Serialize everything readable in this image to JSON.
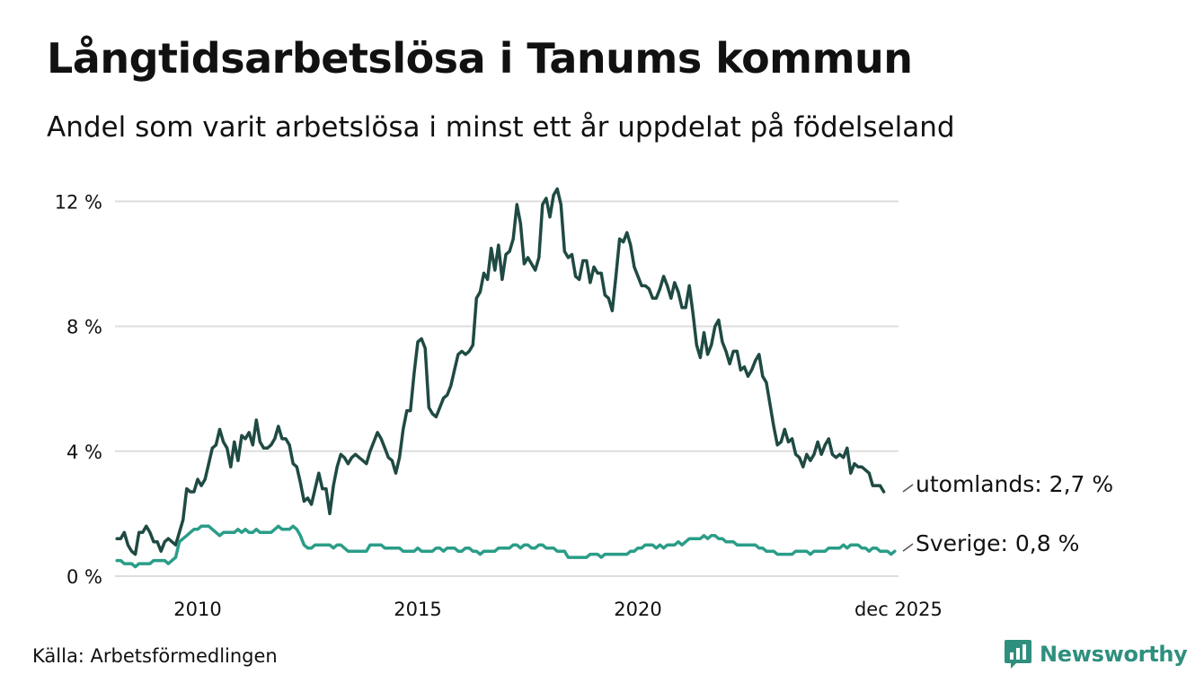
{
  "header": {
    "title": "Långtidsarbetslösa i Tanums kommun",
    "subtitle": "Andel som varit arbetslösa i minst ett år uppdelat på födelseland"
  },
  "footer": {
    "source": "Källa: Arbetsförmedlingen",
    "brand": "Newsworthy"
  },
  "colors": {
    "utomlands": "#1f4a43",
    "sverige": "#2a9d88",
    "grid": "#dddddd",
    "brand": "#2f8f7e"
  },
  "icons": {
    "brand_logo": "newsworthy-chart-bubble-icon"
  },
  "chart_data": {
    "type": "line",
    "title": "Långtidsarbetslösa i Tanums kommun",
    "subtitle": "Andel som varit arbetslösa i minst ett år uppdelat på födelseland",
    "xlabel": "",
    "ylabel": "",
    "x_start": 2008.167,
    "x_step_months": 1,
    "xlim": [
      2008.167,
      2025.917
    ],
    "ylim": [
      0,
      12.5
    ],
    "grid": true,
    "y_ticks": [
      0,
      4,
      8,
      12
    ],
    "y_tick_labels": [
      "0 %",
      "4 %",
      "8 %",
      "12 %"
    ],
    "x_ticks": [
      2010,
      2015,
      2020,
      2025.917
    ],
    "x_tick_labels": [
      "2010",
      "2015",
      "2020",
      "dec 2025"
    ],
    "series": [
      {
        "name": "utomlands",
        "end_label": "utomlands: 2,7 %",
        "last_value": 2.7,
        "values": [
          1.2,
          1.2,
          1.4,
          1.0,
          0.8,
          0.7,
          1.4,
          1.4,
          1.6,
          1.4,
          1.1,
          1.1,
          0.8,
          1.1,
          1.2,
          1.1,
          1.0,
          1.4,
          1.8,
          2.8,
          2.7,
          2.7,
          3.1,
          2.9,
          3.1,
          3.6,
          4.1,
          4.2,
          4.7,
          4.3,
          4.1,
          3.5,
          4.3,
          3.7,
          4.5,
          4.4,
          4.6,
          4.2,
          5.0,
          4.3,
          4.1,
          4.1,
          4.2,
          4.4,
          4.8,
          4.4,
          4.4,
          4.2,
          3.6,
          3.5,
          3.0,
          2.4,
          2.5,
          2.3,
          2.8,
          3.3,
          2.8,
          2.8,
          2.0,
          2.9,
          3.5,
          3.9,
          3.8,
          3.6,
          3.8,
          3.9,
          3.8,
          3.7,
          3.6,
          4.0,
          4.3,
          4.6,
          4.4,
          4.1,
          3.8,
          3.7,
          3.3,
          3.8,
          4.7,
          5.3,
          5.3,
          6.5,
          7.5,
          7.6,
          7.3,
          5.4,
          5.2,
          5.1,
          5.4,
          5.7,
          5.8,
          6.1,
          6.6,
          7.1,
          7.2,
          7.1,
          7.2,
          7.4,
          8.9,
          9.1,
          9.7,
          9.5,
          10.5,
          9.8,
          10.6,
          9.5,
          10.3,
          10.4,
          10.8,
          11.9,
          11.3,
          10.0,
          10.2,
          10.0,
          9.8,
          10.2,
          11.9,
          12.1,
          11.5,
          12.2,
          12.4,
          11.9,
          10.4,
          10.2,
          10.3,
          9.6,
          9.5,
          10.1,
          10.1,
          9.4,
          9.9,
          9.7,
          9.7,
          9.0,
          8.9,
          8.5,
          9.6,
          10.8,
          10.7,
          11.0,
          10.6,
          9.9,
          9.6,
          9.3,
          9.3,
          9.2,
          8.9,
          8.9,
          9.2,
          9.6,
          9.3,
          8.9,
          9.4,
          9.1,
          8.6,
          8.6,
          9.3,
          8.4,
          7.4,
          7.0,
          7.8,
          7.1,
          7.4,
          8.0,
          8.2,
          7.5,
          7.2,
          6.8,
          7.2,
          7.2,
          6.6,
          6.7,
          6.4,
          6.6,
          6.9,
          7.1,
          6.4,
          6.2,
          5.5,
          4.8,
          4.2,
          4.3,
          4.7,
          4.3,
          4.4,
          3.9,
          3.8,
          3.5,
          3.9,
          3.7,
          3.9,
          4.3,
          3.9,
          4.2,
          4.4,
          3.9,
          3.8,
          3.9,
          3.8,
          4.1,
          3.3,
          3.6,
          3.5,
          3.5,
          3.4,
          3.3,
          2.9,
          2.9,
          2.9,
          2.7
        ]
      },
      {
        "name": "Sverige",
        "end_label": "Sverige: 0,8 %",
        "last_value": 0.8,
        "values": [
          0.5,
          0.5,
          0.4,
          0.4,
          0.4,
          0.3,
          0.4,
          0.4,
          0.4,
          0.4,
          0.5,
          0.5,
          0.5,
          0.5,
          0.4,
          0.5,
          0.6,
          1.1,
          1.2,
          1.3,
          1.4,
          1.5,
          1.5,
          1.6,
          1.6,
          1.6,
          1.5,
          1.4,
          1.3,
          1.4,
          1.4,
          1.4,
          1.4,
          1.5,
          1.4,
          1.5,
          1.4,
          1.4,
          1.5,
          1.4,
          1.4,
          1.4,
          1.4,
          1.5,
          1.6,
          1.5,
          1.5,
          1.5,
          1.6,
          1.5,
          1.3,
          1.0,
          0.9,
          0.9,
          1.0,
          1.0,
          1.0,
          1.0,
          1.0,
          0.9,
          1.0,
          1.0,
          0.9,
          0.8,
          0.8,
          0.8,
          0.8,
          0.8,
          0.8,
          1.0,
          1.0,
          1.0,
          1.0,
          0.9,
          0.9,
          0.9,
          0.9,
          0.9,
          0.8,
          0.8,
          0.8,
          0.8,
          0.9,
          0.8,
          0.8,
          0.8,
          0.8,
          0.9,
          0.9,
          0.8,
          0.9,
          0.9,
          0.9,
          0.8,
          0.8,
          0.9,
          0.9,
          0.8,
          0.8,
          0.7,
          0.8,
          0.8,
          0.8,
          0.8,
          0.9,
          0.9,
          0.9,
          0.9,
          1.0,
          1.0,
          0.9,
          1.0,
          1.0,
          0.9,
          0.9,
          1.0,
          1.0,
          0.9,
          0.9,
          0.9,
          0.8,
          0.8,
          0.8,
          0.6,
          0.6,
          0.6,
          0.6,
          0.6,
          0.6,
          0.7,
          0.7,
          0.7,
          0.6,
          0.7,
          0.7,
          0.7,
          0.7,
          0.7,
          0.7,
          0.7,
          0.8,
          0.8,
          0.9,
          0.9,
          1.0,
          1.0,
          1.0,
          0.9,
          1.0,
          0.9,
          1.0,
          1.0,
          1.0,
          1.1,
          1.0,
          1.1,
          1.2,
          1.2,
          1.2,
          1.2,
          1.3,
          1.2,
          1.3,
          1.3,
          1.2,
          1.2,
          1.1,
          1.1,
          1.1,
          1.0,
          1.0,
          1.0,
          1.0,
          1.0,
          1.0,
          0.9,
          0.9,
          0.8,
          0.8,
          0.8,
          0.7,
          0.7,
          0.7,
          0.7,
          0.7,
          0.8,
          0.8,
          0.8,
          0.8,
          0.7,
          0.8,
          0.8,
          0.8,
          0.8,
          0.9,
          0.9,
          0.9,
          0.9,
          1.0,
          0.9,
          1.0,
          1.0,
          1.0,
          0.9,
          0.9,
          0.8,
          0.9,
          0.9,
          0.8,
          0.8,
          0.8,
          0.7,
          0.8
        ]
      }
    ]
  }
}
